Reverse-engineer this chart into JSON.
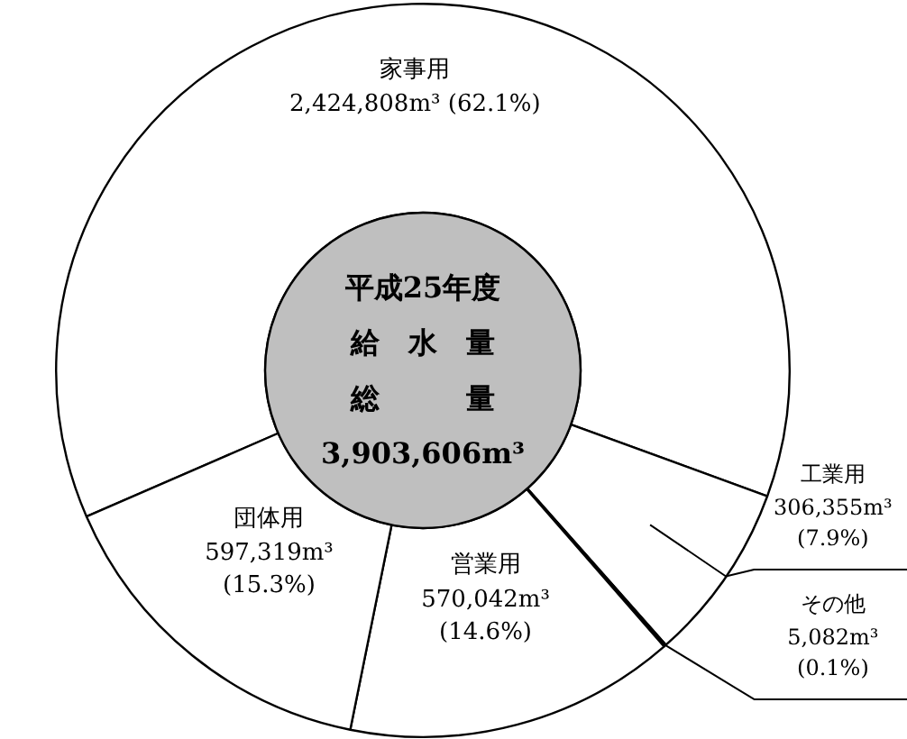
{
  "chart_data": {
    "type": "donut",
    "categories": [
      "家事用",
      "工業用",
      "その他",
      "営業用",
      "団体用"
    ],
    "values": [
      62.1,
      7.9,
      0.1,
      14.6,
      15.3
    ],
    "colors": [
      "#ffffff",
      "#ffffff",
      "#ffffff",
      "#ffffff",
      "#ffffff"
    ],
    "value_labels": [
      "2,424,808m³ (62.1%)",
      "306,355m³\n(7.9%)",
      "5,082m³\n(0.1%)",
      "570,042m³\n(14.6%)",
      "597,319m³\n(15.3%)"
    ],
    "annotations": [
      "平成25年度",
      "給　水　量",
      "総　　　量",
      "3,903,606m³"
    ]
  }
}
